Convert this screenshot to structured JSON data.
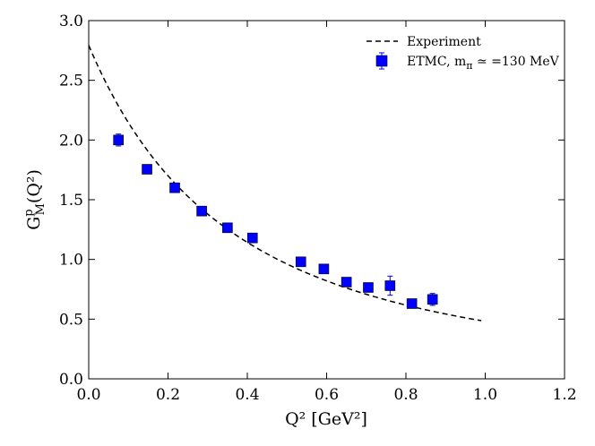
{
  "chart_data": {
    "type": "scatter",
    "xlabel": "Q² [GeV²]",
    "ylabel": "G",
    "ylabel_sup": "p",
    "ylabel_sub": "M",
    "ylabel_tail": "(Q²)",
    "xlim": [
      0.0,
      1.2
    ],
    "ylim": [
      0.0,
      3.0
    ],
    "x_ticks": [
      0.0,
      0.2,
      0.4,
      0.6,
      0.8,
      1.0,
      1.2
    ],
    "x_tick_labels": [
      "0.0",
      "0.2",
      "0.4",
      "0.6",
      "0.8",
      "1.0",
      "1.2"
    ],
    "y_ticks": [
      0.0,
      0.5,
      1.0,
      1.5,
      2.0,
      2.5,
      3.0
    ],
    "y_tick_labels": [
      "0.0",
      "0.5",
      "1.0",
      "1.5",
      "2.0",
      "2.5",
      "3.0"
    ],
    "grid": false,
    "legend_position": "top-right",
    "series": [
      {
        "name": "Experiment",
        "kind": "dashed-line",
        "color": "#000000",
        "function": "dipole",
        "mu_p": 2.793,
        "lambda2": 0.71,
        "x_range": [
          0.0,
          0.99
        ]
      },
      {
        "name": "ETMC, m",
        "name_sub": "π",
        "name_tail": " ≃ =130 MeV",
        "kind": "markers",
        "marker": "square",
        "color": "#0000ff",
        "points": [
          {
            "x": 0.075,
            "y": 2.0,
            "err": 0.05
          },
          {
            "x": 0.147,
            "y": 1.755,
            "err": 0.025
          },
          {
            "x": 0.217,
            "y": 1.6,
            "err": 0.02
          },
          {
            "x": 0.285,
            "y": 1.405,
            "err": 0.03
          },
          {
            "x": 0.35,
            "y": 1.265,
            "err": 0.02
          },
          {
            "x": 0.413,
            "y": 1.18,
            "err": 0.02
          },
          {
            "x": 0.535,
            "y": 0.98,
            "err": 0.025
          },
          {
            "x": 0.593,
            "y": 0.92,
            "err": 0.02
          },
          {
            "x": 0.65,
            "y": 0.81,
            "err": 0.03
          },
          {
            "x": 0.705,
            "y": 0.765,
            "err": 0.02
          },
          {
            "x": 0.76,
            "y": 0.78,
            "err": 0.08
          },
          {
            "x": 0.815,
            "y": 0.63,
            "err": 0.03
          },
          {
            "x": 0.867,
            "y": 0.665,
            "err": 0.05
          }
        ]
      }
    ]
  }
}
